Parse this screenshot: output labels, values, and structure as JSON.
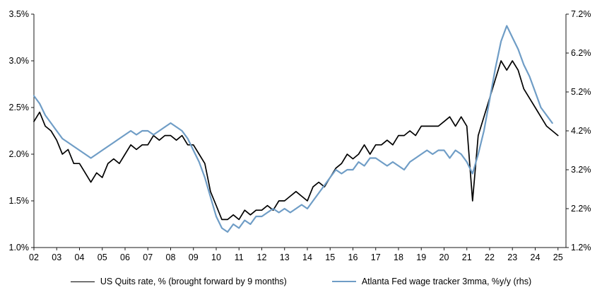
{
  "chart_data": {
    "type": "line",
    "title": "",
    "grid": false,
    "legend_position": "bottom",
    "style": {
      "axis_color": "#1a1a1a",
      "background": "#ffffff"
    },
    "x_axis": {
      "min": 2002,
      "max": 2025.35,
      "ticks": [
        {
          "v": 2002,
          "label": "02"
        },
        {
          "v": 2003,
          "label": "03"
        },
        {
          "v": 2004,
          "label": "04"
        },
        {
          "v": 2005,
          "label": "05"
        },
        {
          "v": 2006,
          "label": "06"
        },
        {
          "v": 2007,
          "label": "07"
        },
        {
          "v": 2008,
          "label": "08"
        },
        {
          "v": 2009,
          "label": "09"
        },
        {
          "v": 2010,
          "label": "10"
        },
        {
          "v": 2011,
          "label": "11"
        },
        {
          "v": 2012,
          "label": "12"
        },
        {
          "v": 2013,
          "label": "13"
        },
        {
          "v": 2014,
          "label": "14"
        },
        {
          "v": 2015,
          "label": "15"
        },
        {
          "v": 2016,
          "label": "16"
        },
        {
          "v": 2017,
          "label": "17"
        },
        {
          "v": 2018,
          "label": "18"
        },
        {
          "v": 2019,
          "label": "19"
        },
        {
          "v": 2020,
          "label": "20"
        },
        {
          "v": 2021,
          "label": "21"
        },
        {
          "v": 2022,
          "label": "22"
        },
        {
          "v": 2023,
          "label": "23"
        },
        {
          "v": 2024,
          "label": "24"
        },
        {
          "v": 2025,
          "label": "25"
        }
      ]
    },
    "left_axis": {
      "min": 1.0,
      "max": 3.5,
      "ticks": [
        {
          "v": 1.0,
          "label": "1.0%"
        },
        {
          "v": 1.5,
          "label": "1.5%"
        },
        {
          "v": 2.0,
          "label": "2.0%"
        },
        {
          "v": 2.5,
          "label": "2.5%"
        },
        {
          "v": 3.0,
          "label": "3.0%"
        },
        {
          "v": 3.5,
          "label": "3.5%"
        }
      ]
    },
    "right_axis": {
      "min": 1.2,
      "max": 7.2,
      "ticks": [
        {
          "v": 1.2,
          "label": "1.2%"
        },
        {
          "v": 2.2,
          "label": "2.2%"
        },
        {
          "v": 3.2,
          "label": "3.2%"
        },
        {
          "v": 4.2,
          "label": "4.2%"
        },
        {
          "v": 5.2,
          "label": "5.2%"
        },
        {
          "v": 6.2,
          "label": "6.2%"
        },
        {
          "v": 7.2,
          "label": "7.2%"
        }
      ]
    },
    "series": [
      {
        "id": "series-line-quits",
        "name": "US Quits rate, % (brought forward by 9 months)",
        "axis": "left",
        "color": "#000000",
        "width": 1.7,
        "x_start": 2002,
        "x_step": 0.25,
        "values": [
          2.35,
          2.45,
          2.3,
          2.25,
          2.15,
          2.0,
          2.05,
          1.9,
          1.9,
          1.8,
          1.7,
          1.8,
          1.75,
          1.9,
          1.95,
          1.9,
          2.0,
          2.1,
          2.05,
          2.1,
          2.1,
          2.2,
          2.15,
          2.2,
          2.2,
          2.15,
          2.2,
          2.1,
          2.1,
          2.0,
          1.9,
          1.6,
          1.45,
          1.3,
          1.3,
          1.35,
          1.3,
          1.4,
          1.35,
          1.4,
          1.4,
          1.45,
          1.4,
          1.5,
          1.5,
          1.55,
          1.6,
          1.55,
          1.5,
          1.65,
          1.7,
          1.65,
          1.75,
          1.85,
          1.9,
          2.0,
          1.95,
          2.0,
          2.1,
          2.0,
          2.1,
          2.1,
          2.15,
          2.1,
          2.2,
          2.2,
          2.25,
          2.2,
          2.3,
          2.3,
          2.3,
          2.3,
          2.35,
          2.4,
          2.3,
          2.4,
          2.3,
          1.5,
          2.2,
          2.4,
          2.6,
          2.8,
          3.0,
          2.9,
          3.0,
          2.9,
          2.7,
          2.6,
          2.5,
          2.4,
          2.3,
          2.25,
          2.2
        ]
      },
      {
        "id": "series-line-wage-tracker",
        "name": "Atlanta Fed wage tracker 3mma, %y/y (rhs)",
        "axis": "right",
        "color": "#6f9dc6",
        "width": 2.2,
        "x_start": 2002,
        "x_step": 0.25,
        "values": [
          5.1,
          4.9,
          4.6,
          4.4,
          4.2,
          4.0,
          3.9,
          3.8,
          3.7,
          3.6,
          3.5,
          3.6,
          3.7,
          3.8,
          3.9,
          4.0,
          4.1,
          4.2,
          4.1,
          4.2,
          4.2,
          4.1,
          4.2,
          4.3,
          4.4,
          4.3,
          4.2,
          4.0,
          3.7,
          3.4,
          3.0,
          2.5,
          2.0,
          1.7,
          1.6,
          1.8,
          1.7,
          1.9,
          1.8,
          2.0,
          2.0,
          2.1,
          2.2,
          2.1,
          2.2,
          2.1,
          2.2,
          2.3,
          2.2,
          2.4,
          2.6,
          2.8,
          3.0,
          3.2,
          3.1,
          3.2,
          3.2,
          3.4,
          3.3,
          3.5,
          3.5,
          3.4,
          3.3,
          3.4,
          3.3,
          3.2,
          3.4,
          3.5,
          3.6,
          3.7,
          3.6,
          3.7,
          3.7,
          3.5,
          3.7,
          3.6,
          3.4,
          3.1,
          3.6,
          4.2,
          5.0,
          5.8,
          6.5,
          6.9,
          6.6,
          6.3,
          5.9,
          5.6,
          5.2,
          4.8,
          4.6,
          4.4
        ]
      }
    ]
  }
}
